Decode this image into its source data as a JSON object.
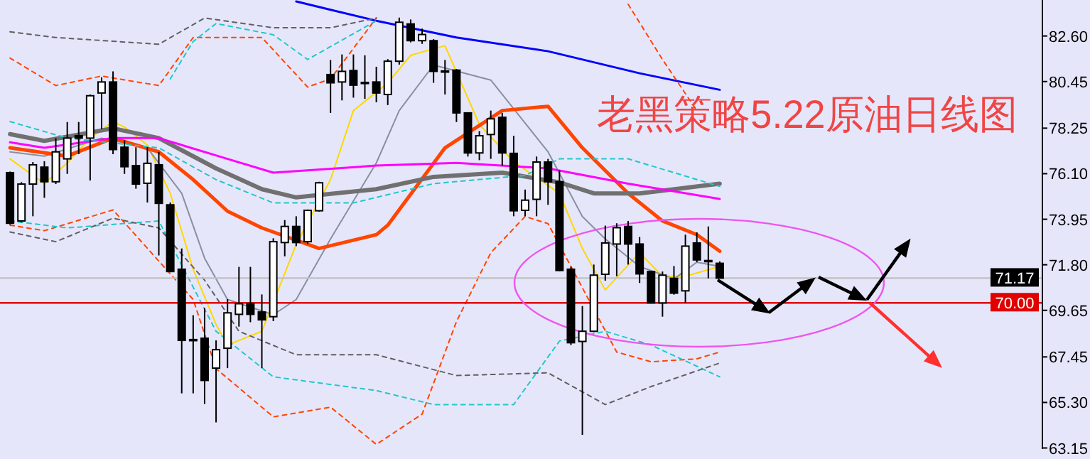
{
  "chart_data": {
    "type": "candlestick",
    "title": "老黑策略5.22原油日线图",
    "categories": [
      null,
      null,
      null,
      null,
      null,
      null,
      null,
      null,
      null,
      null,
      null,
      null,
      null,
      null,
      null,
      null,
      null,
      null,
      null,
      null,
      null,
      null,
      null,
      null,
      null,
      null,
      null,
      null,
      null,
      null,
      null,
      null,
      null,
      null,
      null,
      null,
      null,
      null,
      null,
      null,
      null,
      null,
      null,
      null,
      null,
      null,
      null,
      null,
      null,
      null,
      null,
      null,
      null,
      null,
      null,
      null,
      null,
      null,
      null,
      null,
      null,
      null,
      null,
      null,
      null,
      null,
      null,
      null,
      null,
      null,
      null,
      null,
      null,
      null,
      null,
      null,
      null,
      null,
      null,
      null,
      null,
      null,
      null,
      null,
      null,
      null,
      null,
      null,
      null,
      null,
      null
    ],
    "ohlc": [
      [
        76.15,
        76.2,
        73.7,
        73.76
      ],
      [
        73.87,
        75.7,
        73.8,
        75.61
      ],
      [
        75.61,
        76.65,
        74.09,
        76.52
      ],
      [
        76.41,
        76.69,
        74.96,
        75.72
      ],
      [
        75.72,
        77.78,
        75.61,
        77.13
      ],
      [
        76.8,
        78.54,
        76.09,
        77.78
      ],
      [
        77.89,
        78.54,
        77.02,
        77.78
      ],
      [
        77.78,
        79.84,
        75.78,
        79.78
      ],
      [
        79.91,
        80.65,
        78.21,
        80.43
      ],
      [
        80.43,
        80.93,
        77.02,
        77.24
      ],
      [
        77.35,
        77.67,
        76.09,
        76.43
      ],
      [
        76.48,
        77.35,
        75.39,
        75.61
      ],
      [
        75.65,
        77.35,
        74.74,
        76.59
      ],
      [
        76.52,
        77.13,
        72.24,
        74.7
      ],
      [
        74.63,
        74.74,
        71.45,
        71.48
      ],
      [
        71.59,
        72.57,
        65.73,
        68.23
      ],
      [
        68.27,
        69.42,
        65.73,
        68.25
      ],
      [
        68.33,
        69.75,
        65.23,
        66.34
      ],
      [
        66.92,
        68.23,
        64.36,
        67.79
      ],
      [
        67.86,
        70.18,
        66.92,
        69.53
      ],
      [
        69.46,
        71.7,
        68.88,
        69.96
      ],
      [
        69.96,
        71.7,
        69.09,
        69.46
      ],
      [
        69.57,
        70.4,
        66.92,
        69.2
      ],
      [
        69.35,
        73.05,
        69.14,
        72.89
      ],
      [
        72.85,
        73.91,
        72.2,
        73.61
      ],
      [
        73.61,
        74.09,
        72.68,
        72.85
      ],
      [
        72.89,
        74.41,
        72.78,
        74.37
      ],
      [
        74.35,
        75.72,
        74.31,
        75.67
      ],
      [
        80.78,
        81.47,
        78.97,
        80.39
      ],
      [
        80.43,
        81.73,
        79.56,
        80.93
      ],
      [
        80.97,
        81.73,
        79.69,
        80.28
      ],
      [
        80.41,
        81.69,
        79.63,
        80.39
      ],
      [
        80.43,
        81.15,
        79.47,
        79.91
      ],
      [
        79.84,
        81.51,
        79.34,
        81.41
      ],
      [
        81.41,
        83.47,
        81.25,
        83.25
      ],
      [
        83.17,
        83.38,
        82.3,
        82.38
      ],
      [
        82.38,
        82.95,
        82.23,
        82.67
      ],
      [
        82.38,
        82.45,
        80.39,
        80.93
      ],
      [
        80.95,
        81.47,
        79.84,
        80.93
      ],
      [
        80.99,
        81.04,
        78.54,
        78.97
      ],
      [
        78.97,
        78.97,
        76.91,
        77.08
      ],
      [
        77.08,
        78.11,
        76.74,
        77.89
      ],
      [
        77.95,
        79.08,
        76.8,
        78.69
      ],
      [
        78.76,
        78.97,
        76.48,
        77.08
      ],
      [
        77.06,
        77.89,
        74.09,
        74.35
      ],
      [
        74.37,
        75.35,
        74.09,
        74.85
      ],
      [
        74.89,
        76.91,
        74.09,
        76.65
      ],
      [
        76.65,
        76.8,
        74.63,
        75.72
      ],
      [
        75.72,
        76.26,
        71.5,
        71.53
      ],
      [
        71.59,
        71.7,
        68.01,
        68.12
      ],
      [
        68.18,
        69.85,
        63.77,
        68.66
      ],
      [
        68.66,
        71.81,
        68.62,
        71.31
      ],
      [
        71.35,
        73.65,
        71.05,
        72.83
      ],
      [
        72.78,
        73.76,
        71.26,
        73.55
      ],
      [
        73.61,
        73.87,
        71.81,
        72.78
      ],
      [
        72.78,
        73.11,
        70.94,
        71.37
      ],
      [
        71.48,
        71.52,
        69.98,
        70.0
      ],
      [
        70.0,
        71.48,
        69.35,
        71.31
      ],
      [
        71.16,
        71.74,
        70.39,
        70.46
      ],
      [
        70.57,
        73.22,
        70.0,
        72.68
      ],
      [
        72.83,
        73.33,
        71.92,
        72.03
      ],
      [
        72.0,
        73.61,
        71.16,
        71.98
      ],
      [
        71.87,
        71.96,
        71.15,
        71.17
      ],
      null,
      null,
      null,
      null,
      null,
      null,
      null,
      null,
      null,
      null,
      null,
      null,
      null,
      null,
      null,
      null,
      null,
      null,
      null,
      null,
      null,
      null,
      null,
      null,
      null,
      null,
      null,
      null
    ],
    "series": [
      {
        "type": "line",
        "color": "#ffd700",
        "line_style": "solid",
        "values": [
          76.8,
          null,
          null,
          75.63,
          null,
          76.61,
          null,
          77.78,
          null,
          78.56,
          78.3,
          null,
          77.45,
          null,
          75.17,
          null,
          71.59,
          null,
          68.98,
          68.01,
          null,
          null,
          68.66,
          null,
          null,
          72.76,
          null,
          null,
          75.82,
          null,
          79.08,
          null,
          null,
          80.38,
          null,
          81.69,
          null,
          null,
          82.14,
          null,
          null,
          78.43,
          null,
          null,
          76.67,
          null,
          null,
          null,
          75.17,
          null,
          72.57,
          null,
          70.61,
          null,
          null,
          72.37,
          null,
          71.26,
          null,
          71.26,
          null,
          null,
          71.72,
          null,
          null,
          null,
          null,
          null,
          null,
          null,
          null,
          null,
          null,
          null,
          null,
          null,
          null,
          null,
          null,
          null,
          null,
          null,
          null,
          null,
          null,
          null,
          null,
          null,
          null,
          null,
          null
        ]
      },
      {
        "type": "line",
        "color": "#8890a0",
        "line_style": "solid",
        "values": [
          77.13,
          null,
          null,
          76.93,
          null,
          null,
          null,
          null,
          77.78,
          null,
          null,
          null,
          77.32,
          null,
          null,
          75.17,
          null,
          72.11,
          null,
          70.16,
          null,
          null,
          null,
          69.44,
          null,
          70.16,
          null,
          null,
          73.02,
          null,
          null,
          null,
          76.61,
          null,
          79.08,
          null,
          null,
          81.23,
          null,
          null,
          null,
          null,
          80.52,
          null,
          null,
          null,
          null,
          77.13,
          null,
          null,
          74.08,
          null,
          73.02,
          null,
          null,
          71.72,
          null,
          null,
          71.13,
          null,
          71.92,
          null,
          71.72,
          null,
          null,
          null,
          null,
          null,
          null,
          null,
          null,
          null,
          null,
          null,
          null,
          null,
          null,
          null,
          null,
          null,
          null,
          null,
          null,
          null,
          null,
          null,
          null,
          null,
          null,
          null,
          null
        ]
      },
      {
        "type": "line",
        "color": "#ff4500",
        "line_style": "solid",
        "values": [
          77.32,
          null,
          null,
          null,
          null,
          76.93,
          null,
          null,
          null,
          77.78,
          null,
          null,
          null,
          77.13,
          null,
          null,
          75.82,
          null,
          null,
          74.33,
          null,
          null,
          73.54,
          null,
          null,
          null,
          null,
          72.57,
          null,
          null,
          null,
          null,
          73.22,
          73.67,
          null,
          null,
          null,
          null,
          77.32,
          null,
          null,
          null,
          null,
          79.08,
          null,
          null,
          null,
          79.28,
          null,
          null,
          77.32,
          null,
          null,
          null,
          75.17,
          null,
          null,
          73.87,
          null,
          null,
          73.22,
          null,
          72.44,
          null,
          null,
          null,
          null,
          null,
          null,
          null,
          null,
          null,
          null,
          null,
          null,
          null,
          null,
          null,
          null,
          null,
          null,
          null,
          null,
          null,
          null,
          null,
          null,
          null,
          null,
          null,
          null
        ]
      },
      {
        "type": "line",
        "color": "#707070",
        "line_style": "solid",
        "values": [
          77.97,
          null,
          null,
          77.65,
          null,
          null,
          null,
          null,
          null,
          78.24,
          null,
          null,
          null,
          77.78,
          null,
          null,
          null,
          null,
          76.35,
          null,
          null,
          null,
          75.37,
          null,
          null,
          74.98,
          null,
          null,
          null,
          null,
          null,
          null,
          75.37,
          null,
          null,
          null,
          null,
          75.95,
          null,
          null,
          null,
          null,
          null,
          76.15,
          null,
          null,
          null,
          null,
          75.69,
          null,
          null,
          75.17,
          null,
          null,
          null,
          75.17,
          null,
          null,
          null,
          null,
          null,
          null,
          75.63,
          null,
          null,
          null,
          null,
          null,
          null,
          null,
          null,
          null,
          null,
          null,
          null,
          null,
          null,
          null,
          null,
          null,
          null,
          null,
          null,
          null,
          null,
          null,
          null,
          null,
          null,
          null,
          null
        ]
      },
      {
        "type": "line",
        "color": "#ff00ff",
        "line_style": "solid",
        "values": [
          77.58,
          null,
          null,
          77.32,
          null,
          null,
          null,
          null,
          null,
          77.78,
          null,
          null,
          null,
          77.78,
          null,
          null,
          null,
          null,
          null,
          76.8,
          null,
          null,
          null,
          76.15,
          null,
          null,
          null,
          null,
          null,
          null,
          null,
          null,
          76.48,
          null,
          null,
          null,
          null,
          null,
          null,
          76.61,
          null,
          null,
          null,
          null,
          null,
          null,
          null,
          76.35,
          null,
          null,
          null,
          null,
          null,
          null,
          75.63,
          null,
          null,
          null,
          null,
          null,
          null,
          null,
          74.91,
          null,
          null,
          null,
          null,
          null,
          null,
          null,
          null,
          null,
          null,
          null,
          null,
          null,
          null,
          null,
          null,
          null,
          null,
          null,
          null,
          null,
          null,
          null,
          null,
          null,
          null,
          null,
          null
        ]
      },
      {
        "type": "line",
        "color": "#0000ff",
        "line_style": "solid",
        "values": [
          null,
          null,
          null,
          null,
          null,
          null,
          null,
          null,
          null,
          null,
          null,
          null,
          null,
          null,
          null,
          null,
          null,
          null,
          null,
          null,
          null,
          null,
          null,
          null,
          null,
          84.23,
          null,
          null,
          83.84,
          null,
          null,
          null,
          83.32,
          null,
          null,
          null,
          null,
          null,
          null,
          82.53,
          null,
          null,
          null,
          null,
          null,
          null,
          null,
          81.88,
          null,
          null,
          null,
          null,
          null,
          null,
          null,
          80.84,
          null,
          null,
          null,
          null,
          null,
          null,
          80.06,
          null,
          null,
          null,
          null,
          null,
          null,
          null,
          null,
          null,
          null,
          null,
          null,
          null,
          null,
          null,
          null,
          null,
          null,
          null,
          null,
          null,
          null,
          null,
          null,
          null,
          null,
          null,
          null
        ]
      },
      {
        "type": "line",
        "color": "#ff4500",
        "line_style": "dashed",
        "values": [
          81.56,
          null,
          null,
          null,
          80.26,
          null,
          null,
          null,
          80.71,
          null,
          null,
          null,
          null,
          80.26,
          null,
          null,
          82.53,
          null,
          null,
          null,
          null,
          null,
          82.53,
          null,
          null,
          null,
          80.19,
          null,
          80.58,
          null,
          null,
          null,
          83.45,
          null,
          null,
          null,
          null,
          null,
          null,
          null,
          null,
          null,
          null,
          null,
          null,
          null,
          null,
          null,
          null,
          null,
          null,
          null,
          null,
          null,
          null,
          null,
          null,
          null,
          null,
          null,
          null,
          null,
          null,
          null,
          null,
          null,
          null,
          null,
          null,
          null,
          null,
          null,
          null,
          null,
          null,
          null,
          null,
          null,
          null,
          null,
          null,
          null,
          null,
          null,
          null,
          null,
          null,
          null,
          null,
          null,
          null
        ]
      },
      {
        "type": "line",
        "color": "#ff4500",
        "line_style": "dashed",
        "values": [
          null,
          null,
          null,
          null,
          null,
          null,
          null,
          null,
          null,
          null,
          null,
          null,
          null,
          null,
          null,
          null,
          null,
          null,
          null,
          null,
          null,
          null,
          null,
          null,
          null,
          null,
          null,
          null,
          null,
          null,
          null,
          null,
          null,
          null,
          null,
          null,
          null,
          null,
          null,
          null,
          null,
          null,
          null,
          null,
          null,
          null,
          null,
          null,
          null,
          null,
          null,
          null,
          null,
          null,
          84.1,
          null,
          null,
          81.49,
          null,
          null,
          79.08,
          null,
          null,
          null,
          null,
          null,
          null,
          null,
          null,
          null,
          null,
          null,
          null,
          null,
          null,
          null,
          null,
          null,
          null,
          null,
          null,
          null,
          null,
          null,
          null,
          null,
          null,
          null,
          null,
          null,
          null
        ]
      },
      {
        "type": "line",
        "color": "#ff4500",
        "line_style": "dashed",
        "values": [
          73.67,
          null,
          null,
          73.41,
          null,
          null,
          null,
          null,
          null,
          74.39,
          null,
          null,
          null,
          null,
          null,
          null,
          70.16,
          null,
          66.9,
          null,
          null,
          null,
          null,
          64.62,
          null,
          null,
          null,
          null,
          65.08,
          null,
          null,
          null,
          63.32,
          null,
          null,
          null,
          64.75,
          null,
          null,
          69.12,
          null,
          null,
          72.37,
          null,
          null,
          74.08,
          null,
          73.74,
          null,
          71.72,
          null,
          null,
          null,
          67.68,
          null,
          null,
          67.22,
          null,
          null,
          null,
          67.36,
          null,
          67.68,
          null,
          null,
          null,
          null,
          null,
          null,
          null,
          null,
          null,
          null,
          null,
          null,
          null,
          null,
          null,
          null,
          null,
          null,
          null,
          null,
          null,
          null,
          null,
          null,
          null,
          null,
          null,
          null
        ]
      },
      {
        "type": "line",
        "color": "#20c8c8",
        "line_style": "dashed",
        "values": [
          null,
          null,
          null,
          null,
          null,
          null,
          null,
          null,
          null,
          null,
          null,
          null,
          null,
          null,
          80.58,
          null,
          82.34,
          null,
          83.19,
          null,
          null,
          null,
          null,
          82.66,
          null,
          null,
          81.49,
          null,
          null,
          null,
          null,
          null,
          83.32,
          null,
          null,
          null,
          null,
          null,
          null,
          null,
          null,
          null,
          null,
          null,
          null,
          null,
          null,
          null,
          null,
          null,
          null,
          null,
          null,
          null,
          null,
          null,
          null,
          null,
          null,
          null,
          null,
          null,
          null,
          null,
          null,
          null,
          null,
          null,
          null,
          null,
          null,
          null,
          null,
          null,
          null,
          null,
          null,
          null,
          null,
          null,
          null,
          null,
          null,
          null,
          null,
          null,
          null,
          null,
          null,
          null,
          null
        ]
      },
      {
        "type": "line",
        "color": "#20c8c8",
        "line_style": "dashed",
        "values": [
          78.56,
          null,
          null,
          null,
          null,
          77.78,
          null,
          null,
          null,
          null,
          null,
          null,
          null,
          77.32,
          null,
          null,
          null,
          null,
          75.82,
          null,
          null,
          null,
          null,
          74.72,
          null,
          null,
          null,
          null,
          null,
          null,
          74.72,
          null,
          null,
          null,
          null,
          null,
          null,
          75.63,
          null,
          null,
          null,
          null,
          null,
          null,
          null,
          76.02,
          null,
          null,
          76.8,
          null,
          null,
          null,
          null,
          null,
          76.8,
          null,
          null,
          null,
          null,
          null,
          null,
          null,
          75.5,
          null,
          null,
          null,
          null,
          null,
          null,
          null,
          null,
          null,
          null,
          null,
          null,
          null,
          null,
          null,
          null,
          null,
          null,
          null,
          null,
          null,
          null,
          null,
          null,
          null,
          null,
          null,
          null
        ]
      },
      {
        "type": "line",
        "color": "#20c8c8",
        "line_style": "dashed",
        "values": [
          73.87,
          null,
          null,
          null,
          null,
          73.54,
          null,
          null,
          null,
          null,
          null,
          null,
          null,
          73.87,
          null,
          null,
          null,
          null,
          68.66,
          null,
          null,
          null,
          null,
          66.51,
          null,
          null,
          null,
          null,
          null,
          null,
          null,
          null,
          65.86,
          null,
          null,
          null,
          null,
          65.2,
          null,
          null,
          null,
          null,
          null,
          null,
          65.2,
          null,
          null,
          null,
          68.2,
          null,
          null,
          null,
          68.66,
          null,
          null,
          null,
          68.01,
          null,
          null,
          null,
          null,
          null,
          66.51,
          null,
          null,
          null,
          null,
          null,
          null,
          null,
          null,
          null,
          null,
          null,
          null,
          null,
          null,
          null,
          null,
          null,
          null,
          null,
          null,
          null,
          null,
          null,
          null,
          null,
          null,
          null,
          null
        ]
      },
      {
        "type": "line",
        "color": "#606060",
        "line_style": "dashed",
        "values": [
          82.8,
          null,
          null,
          null,
          82.53,
          null,
          null,
          null,
          null,
          null,
          null,
          null,
          null,
          82.21,
          null,
          null,
          null,
          83.45,
          null,
          null,
          null,
          null,
          null,
          82.99,
          null,
          null,
          null,
          null,
          82.99,
          null,
          null,
          null,
          83.45,
          null,
          null,
          null,
          null,
          null,
          null,
          null,
          null,
          null,
          null,
          null,
          null,
          null,
          null,
          null,
          null,
          null,
          null,
          null,
          null,
          null,
          null,
          null,
          null,
          null,
          null,
          null,
          null,
          null,
          null,
          null,
          null,
          null,
          null,
          null,
          null,
          null,
          null,
          null,
          null,
          null,
          null,
          null,
          null,
          null,
          null,
          null,
          null,
          null,
          null,
          null,
          null,
          null,
          null,
          null,
          null,
          null,
          null
        ]
      },
      {
        "type": "line",
        "color": "#606060",
        "line_style": "dashed",
        "values": [
          73.35,
          null,
          null,
          null,
          72.89,
          null,
          null,
          null,
          null,
          74.0,
          null,
          null,
          null,
          73.54,
          null,
          null,
          null,
          71.07,
          null,
          null,
          68.66,
          null,
          null,
          null,
          null,
          67.55,
          null,
          null,
          null,
          null,
          null,
          null,
          67.55,
          null,
          null,
          null,
          null,
          null,
          null,
          66.57,
          null,
          null,
          null,
          null,
          null,
          null,
          null,
          66.7,
          null,
          null,
          null,
          null,
          65.2,
          null,
          null,
          null,
          66.05,
          null,
          null,
          null,
          null,
          null,
          67.16,
          null,
          null,
          null,
          null,
          null,
          null,
          null,
          null,
          null,
          null,
          null,
          null,
          null,
          null,
          null,
          null,
          null,
          null,
          null,
          null,
          null,
          null,
          null,
          null,
          null,
          null,
          null,
          null
        ]
      }
    ],
    "ref_lines": [
      {
        "axis": "y",
        "value": 71.17,
        "label": "71.17",
        "color": "#c0c0c0"
      },
      {
        "axis": "y",
        "value": 70.0,
        "label": "70.00",
        "color": "#e00000"
      }
    ],
    "ylim": [
      63.1,
      84.3
    ],
    "yticks": [
      {
        "value": 82.6,
        "label": "82.60"
      },
      {
        "value": 80.45,
        "label": "80.45"
      },
      {
        "value": 78.25,
        "label": "78.25"
      },
      {
        "value": 76.1,
        "label": "76.10"
      },
      {
        "value": 73.95,
        "label": "73.95"
      },
      {
        "value": 71.8,
        "label": "71.80"
      },
      {
        "value": 69.65,
        "label": "69.65"
      },
      {
        "value": 67.45,
        "label": "67.45"
      },
      {
        "value": 65.3,
        "label": "65.30"
      },
      {
        "value": 63.15,
        "label": "63.15"
      }
    ]
  }
}
